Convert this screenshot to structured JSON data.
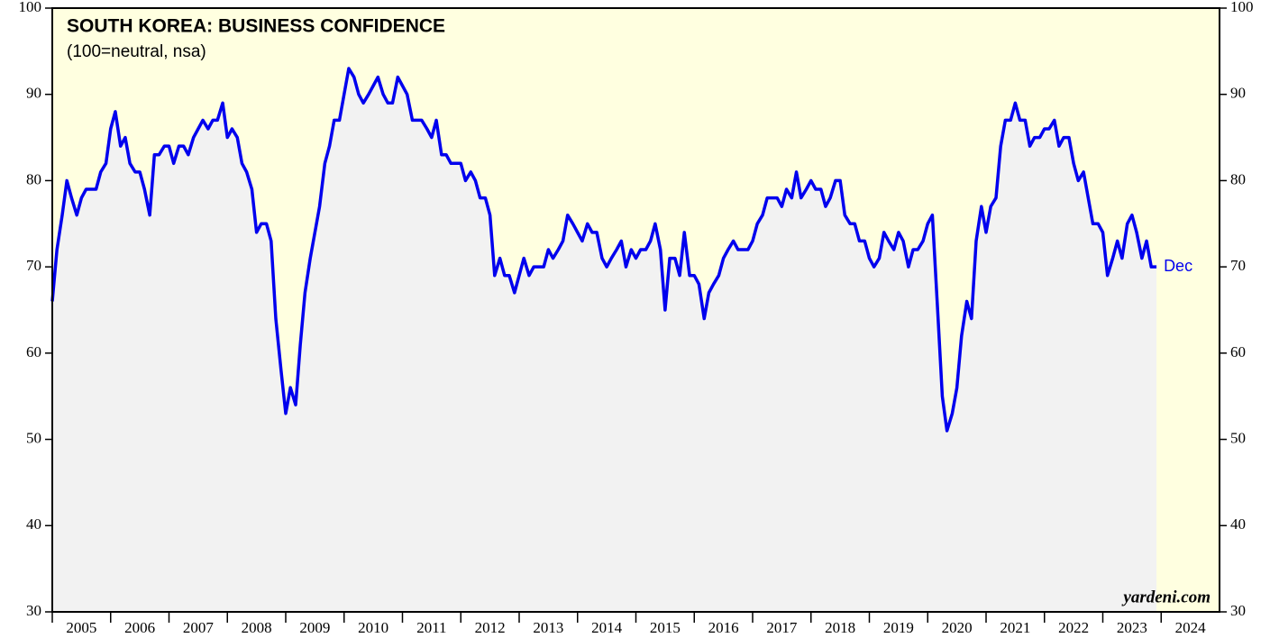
{
  "chart_data": {
    "type": "line",
    "title": "SOUTH KOREA: BUSINESS CONFIDENCE",
    "subtitle": "(100=neutral, nsa)",
    "source": "yardeni.com",
    "annotation": "Dec",
    "xlim": [
      2005,
      2025
    ],
    "xticks": [
      2005,
      2006,
      2007,
      2008,
      2009,
      2010,
      2011,
      2012,
      2013,
      2014,
      2015,
      2016,
      2017,
      2018,
      2019,
      2020,
      2021,
      2022,
      2023,
      2024
    ],
    "ylim": [
      30,
      100
    ],
    "yticks": [
      30,
      40,
      50,
      60,
      70,
      80,
      90,
      100
    ],
    "y2lim": [
      30,
      100
    ],
    "y2ticks": [
      30,
      40,
      50,
      60,
      70,
      80,
      90,
      100
    ],
    "background": "#ffffe0",
    "area_color": "#f2f2f2",
    "x": [
      2005.0,
      2005.08,
      2005.17,
      2005.25,
      2005.33,
      2005.42,
      2005.5,
      2005.58,
      2005.67,
      2005.75,
      2005.83,
      2005.92,
      2006.0,
      2006.08,
      2006.17,
      2006.25,
      2006.33,
      2006.42,
      2006.5,
      2006.58,
      2006.67,
      2006.75,
      2006.83,
      2006.92,
      2007.0,
      2007.08,
      2007.17,
      2007.25,
      2007.33,
      2007.42,
      2007.5,
      2007.58,
      2007.67,
      2007.75,
      2007.83,
      2007.92,
      2008.0,
      2008.08,
      2008.17,
      2008.25,
      2008.33,
      2008.42,
      2008.5,
      2008.58,
      2008.67,
      2008.75,
      2008.83,
      2008.92,
      2009.0,
      2009.08,
      2009.17,
      2009.25,
      2009.33,
      2009.42,
      2009.5,
      2009.58,
      2009.67,
      2009.75,
      2009.83,
      2009.92,
      2010.0,
      2010.08,
      2010.17,
      2010.25,
      2010.33,
      2010.42,
      2010.5,
      2010.58,
      2010.67,
      2010.75,
      2010.83,
      2010.92,
      2011.0,
      2011.08,
      2011.17,
      2011.25,
      2011.33,
      2011.42,
      2011.5,
      2011.58,
      2011.67,
      2011.75,
      2011.83,
      2011.92,
      2012.0,
      2012.08,
      2012.17,
      2012.25,
      2012.33,
      2012.42,
      2012.5,
      2012.58,
      2012.67,
      2012.75,
      2012.83,
      2012.92,
      2013.0,
      2013.08,
      2013.17,
      2013.25,
      2013.33,
      2013.42,
      2013.5,
      2013.58,
      2013.67,
      2013.75,
      2013.83,
      2013.92,
      2014.0,
      2014.08,
      2014.17,
      2014.25,
      2014.33,
      2014.42,
      2014.5,
      2014.58,
      2014.67,
      2014.75,
      2014.83,
      2014.92,
      2015.0,
      2015.08,
      2015.17,
      2015.25,
      2015.33,
      2015.42,
      2015.5,
      2015.58,
      2015.67,
      2015.75,
      2015.83,
      2015.92,
      2016.0,
      2016.08,
      2016.17,
      2016.25,
      2016.33,
      2016.42,
      2016.5,
      2016.58,
      2016.67,
      2016.75,
      2016.83,
      2016.92,
      2017.0,
      2017.08,
      2017.17,
      2017.25,
      2017.33,
      2017.42,
      2017.5,
      2017.58,
      2017.67,
      2017.75,
      2017.83,
      2017.92,
      2018.0,
      2018.08,
      2018.17,
      2018.25,
      2018.33,
      2018.42,
      2018.5,
      2018.58,
      2018.67,
      2018.75,
      2018.83,
      2018.92,
      2019.0,
      2019.08,
      2019.17,
      2019.25,
      2019.33,
      2019.42,
      2019.5,
      2019.58,
      2019.67,
      2019.75,
      2019.83,
      2019.92,
      2020.0,
      2020.08,
      2020.17,
      2020.25,
      2020.33,
      2020.42,
      2020.5,
      2020.58,
      2020.67,
      2020.75,
      2020.83,
      2020.92,
      2021.0,
      2021.08,
      2021.17,
      2021.25,
      2021.33,
      2021.42,
      2021.5,
      2021.58,
      2021.67,
      2021.75,
      2021.83,
      2021.92,
      2022.0,
      2022.08,
      2022.17,
      2022.25,
      2022.33,
      2022.42,
      2022.5,
      2022.58,
      2022.67,
      2022.75,
      2022.83,
      2022.92,
      2023.0,
      2023.08,
      2023.17,
      2023.25,
      2023.33,
      2023.42,
      2023.5,
      2023.58,
      2023.67,
      2023.75,
      2023.83,
      2023.92
    ],
    "series": [
      {
        "color": "#0000ee",
        "values": [
          66,
          72,
          76,
          80,
          78,
          76,
          78,
          79,
          79,
          79,
          81,
          82,
          86,
          88,
          84,
          85,
          82,
          81,
          81,
          79,
          76,
          83,
          83,
          84,
          84,
          82,
          84,
          84,
          83,
          85,
          86,
          87,
          86,
          87,
          87,
          89,
          85,
          86,
          85,
          82,
          81,
          79,
          74,
          75,
          75,
          73,
          64,
          58,
          53,
          56,
          54,
          61,
          67,
          71,
          74,
          77,
          82,
          84,
          87,
          87,
          90,
          93,
          92,
          90,
          89,
          90,
          91,
          92,
          90,
          89,
          89,
          92,
          91,
          90,
          87,
          87,
          87,
          86,
          85,
          87,
          83,
          83,
          82,
          82,
          82,
          80,
          81,
          80,
          78,
          78,
          76,
          69,
          71,
          69,
          69,
          67,
          69,
          71,
          69,
          70,
          70,
          70,
          72,
          71,
          72,
          73,
          76,
          75,
          74,
          73,
          75,
          74,
          74,
          71,
          70,
          71,
          72,
          73,
          70,
          72,
          71,
          72,
          72,
          73,
          75,
          72,
          65,
          71,
          71,
          69,
          74,
          69,
          69,
          68,
          64,
          67,
          68,
          69,
          71,
          72,
          73,
          72,
          72,
          72,
          73,
          75,
          76,
          78,
          78,
          78,
          77,
          79,
          78,
          81,
          78,
          79,
          80,
          79,
          79,
          77,
          78,
          80,
          80,
          76,
          75,
          75,
          73,
          73,
          71,
          70,
          71,
          74,
          73,
          72,
          74,
          73,
          70,
          72,
          72,
          73,
          75,
          76,
          65,
          55,
          51,
          53,
          56,
          62,
          66,
          64,
          73,
          77,
          74,
          77,
          78,
          84,
          87,
          87,
          89,
          87,
          87,
          84,
          85,
          85,
          86,
          86,
          87,
          84,
          85,
          85,
          82,
          80,
          81,
          78,
          75,
          75,
          74,
          69,
          71,
          73,
          71,
          75,
          76,
          74,
          71,
          73,
          70,
          70
        ]
      }
    ]
  }
}
